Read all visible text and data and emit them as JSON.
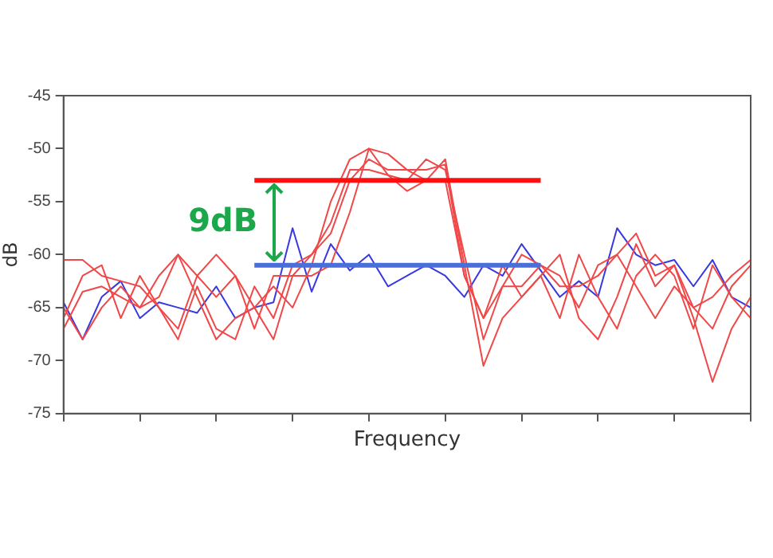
{
  "chart_data": {
    "type": "line",
    "xlabel": "Frequency",
    "ylabel": "dB",
    "categories": [
      null,
      null,
      null,
      null,
      null,
      null,
      null,
      null,
      null,
      null,
      null,
      null,
      null,
      null,
      null,
      null,
      null,
      null,
      null,
      null,
      null,
      null,
      null,
      null,
      null,
      null,
      null,
      null,
      null,
      null,
      null,
      null,
      null,
      null,
      null,
      null,
      null
    ],
    "series": [
      {
        "color": "#f04848",
        "values": [
          -60.5,
          -60.5,
          -62,
          -62.5,
          -63,
          -65,
          -67,
          -62,
          -60,
          -62,
          -65,
          -63,
          -65,
          -61,
          -55,
          -51,
          -50,
          -50.5,
          -52,
          -53,
          -51,
          -61,
          -70.5,
          -66,
          -64,
          -62,
          -66,
          -60,
          -64,
          -67,
          -62,
          -60,
          -62,
          -67,
          -61,
          -64,
          -66
        ]
      },
      {
        "color": "#f04848",
        "values": [
          -67,
          -63.5,
          -63,
          -64,
          -65,
          -62,
          -60,
          -62,
          -64,
          -62,
          -67,
          -62,
          -62,
          -60,
          -57,
          -52,
          -52,
          -52.5,
          -53,
          -51,
          -52,
          -60,
          -68,
          -63,
          -60,
          -61,
          -63,
          -63,
          -62,
          -60,
          -58,
          -62,
          -61,
          -65,
          -64,
          -62,
          -60.5
        ]
      },
      {
        "color": "#f04848",
        "values": [
          -66,
          -62,
          -61,
          -66,
          -62,
          -65,
          -68,
          -63,
          -67,
          -68,
          -63,
          -66,
          -61,
          -60,
          -58,
          -53,
          -51,
          -52,
          -52,
          -52,
          -51.5,
          -62,
          -66,
          -61,
          -64,
          -62,
          -60,
          -66,
          -68,
          -64,
          -59,
          -63,
          -61,
          -66,
          -72,
          -67,
          -64
        ]
      },
      {
        "color": "#f04848",
        "values": [
          -65,
          -68,
          -65,
          -63,
          -65,
          -64,
          -60,
          -64,
          -68,
          -66,
          -65,
          -68,
          -62,
          -62,
          -61,
          -56,
          -50,
          -52.5,
          -54,
          -53,
          -53,
          -62,
          -66,
          -63,
          -63,
          -61,
          -62,
          -65,
          -61,
          -60,
          -63,
          -66,
          -63,
          -65,
          -67,
          -63,
          -61
        ]
      },
      {
        "color": "#3838e0",
        "values": [
          -64.5,
          -68,
          -64,
          -62.5,
          -66,
          -64.5,
          -65,
          -65.5,
          -63,
          -66,
          -65,
          -64.5,
          -57.5,
          -63.5,
          -59,
          -61.5,
          -60,
          -63,
          -62,
          -61,
          -62,
          -64,
          -61,
          -62,
          -59,
          -61.5,
          -64,
          -62.5,
          -64,
          -57.5,
          -60,
          -61,
          -60.5,
          -63,
          -60.5,
          -64,
          -65
        ]
      },
      {
        "color": "#ff1010",
        "values": [
          null,
          null,
          null,
          null,
          null,
          null,
          null,
          null,
          null,
          null,
          -53,
          -53,
          -53,
          -53,
          -53,
          -53,
          -53,
          -53,
          -53,
          -53,
          -53,
          -53,
          -53,
          -53,
          -53,
          -53,
          null,
          null,
          null,
          null,
          null,
          null,
          null,
          null,
          null,
          null,
          null
        ]
      },
      {
        "color": "#4a6fd8",
        "values": [
          null,
          null,
          null,
          null,
          null,
          null,
          null,
          null,
          null,
          null,
          -61,
          -61,
          -61,
          -61,
          -61,
          -61,
          -61,
          -61,
          -61,
          -61,
          -61,
          -61,
          -61,
          -61,
          -61,
          -61,
          null,
          null,
          null,
          null,
          null,
          null,
          null,
          null,
          null,
          null,
          null
        ]
      }
    ],
    "annotations": [
      "9dB"
    ],
    "ylim": [
      -75,
      -45
    ],
    "yticks": [
      -75,
      -70,
      -65,
      -60,
      -55,
      -50,
      -45
    ],
    "tick_labels": "y",
    "legend": false,
    "grid": false,
    "marker": "none",
    "line_style": "solid"
  }
}
